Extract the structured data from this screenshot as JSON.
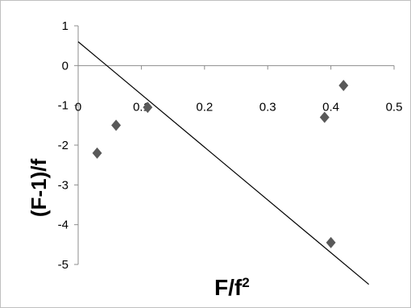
{
  "chart_data": {
    "type": "scatter",
    "title": "",
    "xlabel": "F/f",
    "xlabel_superscript": "2",
    "ylabel": "(F-1)/f",
    "xlim": [
      0,
      0.5
    ],
    "ylim": [
      -5,
      1
    ],
    "xticks": [
      "0",
      "0.1",
      "0.2",
      "0.3",
      "0.4",
      "0.5"
    ],
    "yticks": [
      "1",
      "0",
      "-1",
      "-2",
      "-3",
      "-4",
      "-5"
    ],
    "grid": false,
    "legend": "none",
    "marker": "diamond",
    "marker_color": "#595959",
    "trendline_color": "#000000",
    "series": [
      {
        "x": [
          0.03,
          0.06,
          0.11,
          0.39,
          0.4,
          0.42
        ],
        "y": [
          -2.2,
          -1.5,
          -1.05,
          -1.3,
          -4.45,
          -0.5
        ]
      }
    ],
    "trendline": {
      "x": [
        0,
        0.46
      ],
      "y": [
        0.6,
        -5.5
      ]
    }
  }
}
